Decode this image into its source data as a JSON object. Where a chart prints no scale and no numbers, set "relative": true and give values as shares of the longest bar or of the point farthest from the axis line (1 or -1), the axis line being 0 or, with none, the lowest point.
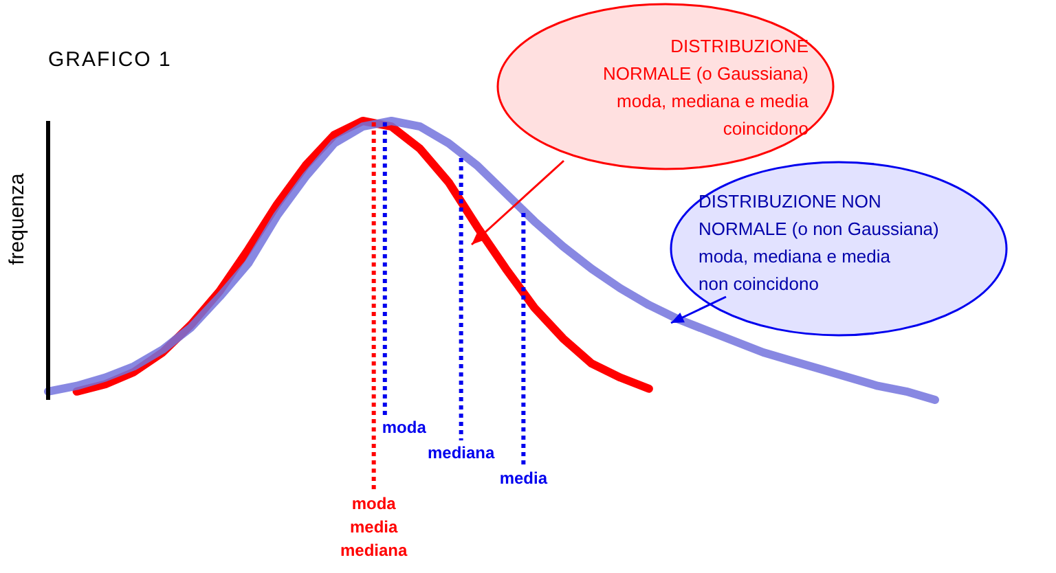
{
  "chart_data": {
    "type": "line",
    "title": "GRAFICO 1",
    "ylabel": "frequenza",
    "relative": true,
    "grid": false,
    "marker": "none",
    "line_style": "solid",
    "categories": [
      null,
      null,
      null,
      null,
      null,
      null,
      null,
      null,
      null,
      null,
      null,
      null,
      null,
      null,
      null,
      null,
      null,
      null,
      null,
      null,
      null,
      null,
      null,
      null,
      null,
      null,
      null,
      null,
      null,
      null,
      null,
      null
    ],
    "series": [
      {
        "color": "#ff0000",
        "values": [
          null,
          0.03,
          0.056,
          0.1,
          0.17,
          0.27,
          0.39,
          0.54,
          0.7,
          0.84,
          0.95,
          1.0,
          0.98,
          0.9,
          0.78,
          0.62,
          0.47,
          0.33,
          0.22,
          0.13,
          0.08,
          0.04,
          null,
          null,
          null,
          null,
          null,
          null,
          null,
          null,
          null,
          null
        ]
      },
      {
        "color": "#7373dd",
        "values": [
          0.03,
          0.05,
          0.08,
          0.12,
          0.18,
          0.26,
          0.37,
          0.49,
          0.66,
          0.8,
          0.92,
          0.98,
          1.0,
          0.98,
          0.92,
          0.84,
          0.74,
          0.64,
          0.55,
          0.47,
          0.4,
          0.34,
          0.29,
          0.25,
          0.21,
          0.17,
          0.14,
          0.11,
          0.08,
          0.05,
          0.03,
          0.0
        ]
      }
    ],
    "annotations": [
      "DISTRIBUZIONE\nNORMALE (o Gaussiana)\nmoda, mediana e media\ncoincidono",
      "DISTRIBUZIONE NON\nNORMALE (o non Gaussiana)\nmoda, mediana e media\nnon coincidono",
      "moda",
      "mediana",
      "media",
      "moda\nmedia\nmediana"
    ]
  }
}
